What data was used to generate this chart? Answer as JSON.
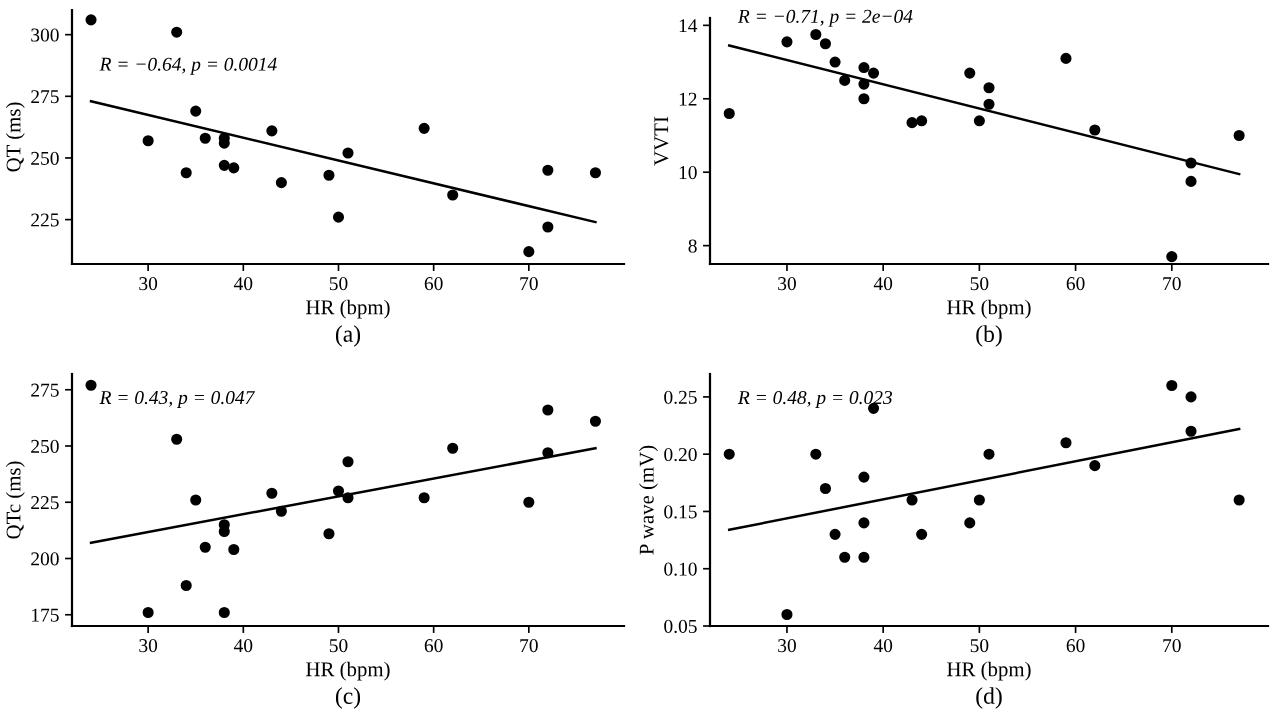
{
  "chart_data": [
    {
      "type": "scatter",
      "xlabel": "HR (bpm)",
      "ylabel": "QT (ms)",
      "annotations": [
        "R = −0.64, p = 0.0014",
        "(a)"
      ],
      "xlim": [
        22,
        80
      ],
      "ylim": [
        207,
        310
      ],
      "xticks": [
        30,
        40,
        50,
        60,
        70
      ],
      "yticks": [
        225,
        250,
        275,
        300
      ],
      "grid": false,
      "legend": false,
      "marker": "circle",
      "series": [
        {
          "color": "#000000",
          "x": [
            24,
            33,
            35,
            30,
            36,
            38,
            38,
            34,
            38,
            39,
            43,
            44,
            49,
            50,
            51,
            59,
            62,
            70,
            72,
            72,
            77
          ],
          "values": [
            306,
            301,
            269,
            257,
            258,
            258,
            256,
            244,
            247,
            246,
            261,
            240,
            243,
            226,
            252,
            262,
            235,
            212,
            222,
            245,
            244
          ]
        },
        {
          "type": "line",
          "marker": "none",
          "color": "#000000",
          "x": [
            24,
            77
          ],
          "values": [
            273,
            224
          ]
        }
      ]
    },
    {
      "type": "scatter",
      "xlabel": "HR (bpm)",
      "ylabel": "VVTI",
      "annotations": [
        "R = −0.71, p = 2e−04",
        "(b)"
      ],
      "xlim": [
        22,
        80
      ],
      "ylim": [
        7.5,
        14.2
      ],
      "xticks": [
        30,
        40,
        50,
        60,
        70
      ],
      "yticks": [
        8,
        10,
        12,
        14
      ],
      "grid": false,
      "legend": false,
      "marker": "circle",
      "series": [
        {
          "color": "#000000",
          "x": [
            24,
            30,
            33,
            34,
            35,
            36,
            38,
            38,
            38,
            39,
            43,
            44,
            49,
            50,
            51,
            51,
            59,
            62,
            70,
            72,
            72,
            77
          ],
          "values": [
            11.6,
            13.55,
            13.75,
            13.5,
            13.0,
            12.5,
            12.85,
            12.4,
            12.0,
            12.7,
            11.35,
            11.4,
            12.7,
            11.4,
            12.3,
            11.85,
            13.1,
            11.15,
            7.7,
            10.25,
            9.75,
            11.0
          ]
        },
        {
          "type": "line",
          "marker": "none",
          "color": "#000000",
          "x": [
            24,
            77
          ],
          "values": [
            13.45,
            9.95
          ]
        }
      ]
    },
    {
      "type": "scatter",
      "xlabel": "HR (bpm)",
      "ylabel": "QTc (ms)",
      "annotations": [
        "R = 0.43, p = 0.047",
        "(c)"
      ],
      "xlim": [
        22,
        80
      ],
      "ylim": [
        170,
        282
      ],
      "xticks": [
        30,
        40,
        50,
        60,
        70
      ],
      "yticks": [
        175,
        200,
        225,
        250,
        275
      ],
      "grid": false,
      "legend": false,
      "marker": "circle",
      "series": [
        {
          "color": "#000000",
          "x": [
            24,
            33,
            35,
            30,
            34,
            36,
            38,
            38,
            38,
            39,
            43,
            44,
            49,
            50,
            51,
            51,
            59,
            62,
            70,
            72,
            72,
            77
          ],
          "values": [
            277,
            253,
            226,
            176,
            188,
            205,
            215,
            212,
            176,
            204,
            229,
            221,
            211,
            230,
            243,
            227,
            227,
            249,
            225,
            266,
            247,
            261
          ]
        },
        {
          "type": "line",
          "marker": "none",
          "color": "#000000",
          "x": [
            24,
            77
          ],
          "values": [
            207,
            249
          ]
        }
      ]
    },
    {
      "type": "scatter",
      "xlabel": "HR (bpm)",
      "ylabel": "P wave (mV)",
      "annotations": [
        "R = 0.48, p = 0.023",
        "(d)"
      ],
      "xlim": [
        22,
        80
      ],
      "ylim": [
        0.05,
        0.27
      ],
      "xticks": [
        30,
        40,
        50,
        60,
        70
      ],
      "yticks": [
        0.05,
        {
          "value": 0.1,
          "label": "0.10"
        },
        0.15,
        {
          "value": 0.2,
          "label": "0.20"
        },
        0.25
      ],
      "grid": false,
      "legend": false,
      "marker": "circle",
      "series": [
        {
          "color": "#000000",
          "x": [
            24,
            30,
            33,
            34,
            35,
            36,
            38,
            38,
            38,
            39,
            43,
            44,
            49,
            50,
            51,
            59,
            62,
            70,
            72,
            72,
            77
          ],
          "values": [
            0.2,
            0.06,
            0.2,
            0.17,
            0.13,
            0.11,
            0.18,
            0.14,
            0.11,
            0.24,
            0.16,
            0.13,
            0.14,
            0.16,
            0.2,
            0.21,
            0.19,
            0.26,
            0.25,
            0.22,
            0.16
          ]
        },
        {
          "type": "line",
          "marker": "none",
          "color": "#000000",
          "x": [
            24,
            77
          ],
          "values": [
            0.134,
            0.222
          ]
        }
      ]
    }
  ]
}
